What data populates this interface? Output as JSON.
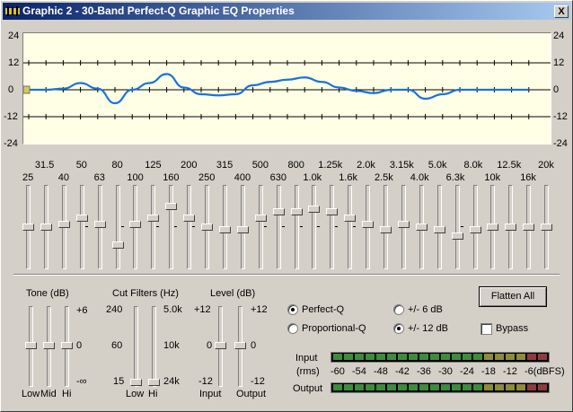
{
  "window": {
    "title": "Graphic 2 - 30-Band Perfect-Q Graphic EQ Properties",
    "close_label": "X"
  },
  "graph": {
    "y_labels": [
      "24",
      "12",
      "0",
      "-12",
      "-24"
    ],
    "curve_gains_db": [
      0,
      0,
      0.5,
      3,
      0.5,
      -6,
      0,
      3,
      7,
      1,
      -2,
      -2.5,
      -2,
      2,
      3.5,
      4.5,
      5.5,
      3.5,
      1,
      -0.5,
      -1.5,
      0,
      0,
      -4,
      -2,
      0,
      0,
      0,
      0,
      0
    ],
    "bg_color": "#ffffe6",
    "curve_color": "#1a73d9"
  },
  "bands": {
    "labels_top": [
      "31.5",
      "50",
      "80",
      "125",
      "200",
      "315",
      "500",
      "800",
      "1.25k",
      "2.0k",
      "3.15k",
      "5.0k",
      "8.0k",
      "12.5k",
      "20k"
    ],
    "labels_bottom": [
      "25",
      "40",
      "63",
      "100",
      "160",
      "250",
      "400",
      "630",
      "1.0k",
      "1.6k",
      "2.5k",
      "4.0k",
      "6.3k",
      "10k",
      "16k"
    ],
    "gains_db": [
      0,
      0,
      1,
      3,
      1,
      -6,
      1,
      3,
      7,
      3,
      0,
      -1,
      -1,
      3,
      5,
      5,
      6,
      5,
      3,
      1,
      -1,
      1,
      0,
      -1,
      -3,
      -1,
      0,
      0,
      0,
      0
    ]
  },
  "tone": {
    "title": "Tone (dB)",
    "max": "+6",
    "mid": "0",
    "min": "-∞",
    "sliders": [
      "Low",
      "Mid",
      "Hi"
    ],
    "values_db": [
      0,
      0,
      0
    ]
  },
  "cut_filters": {
    "title": "Cut Filters (Hz)",
    "low_scale": [
      "240",
      "60",
      "15"
    ],
    "hi_scale": [
      "5.0k",
      "10k",
      "24k"
    ],
    "sliders": [
      "Low",
      "Hi"
    ]
  },
  "level": {
    "title": "Level (dB)",
    "max_left": "+12",
    "mid_left": "0",
    "min_left": "-12",
    "max_right": "+12",
    "mid_right": "0",
    "min_right": "-12",
    "sliders": [
      "Input",
      "Output"
    ]
  },
  "options": {
    "perfect_q": "Perfect-Q",
    "proportional_q": "Proportional-Q",
    "range_6": "+/- 6 dB",
    "range_12": "+/- 12 dB",
    "bypass": "Bypass",
    "flatten": "Flatten All"
  },
  "meters": {
    "input_label": "Input",
    "rms_label": "(rms)",
    "output_label": "Output",
    "scale": [
      "-60",
      "-54",
      "-48",
      "-42",
      "-36",
      "-30",
      "-24",
      "-18",
      "-12",
      "-6(dBFS)"
    ]
  }
}
